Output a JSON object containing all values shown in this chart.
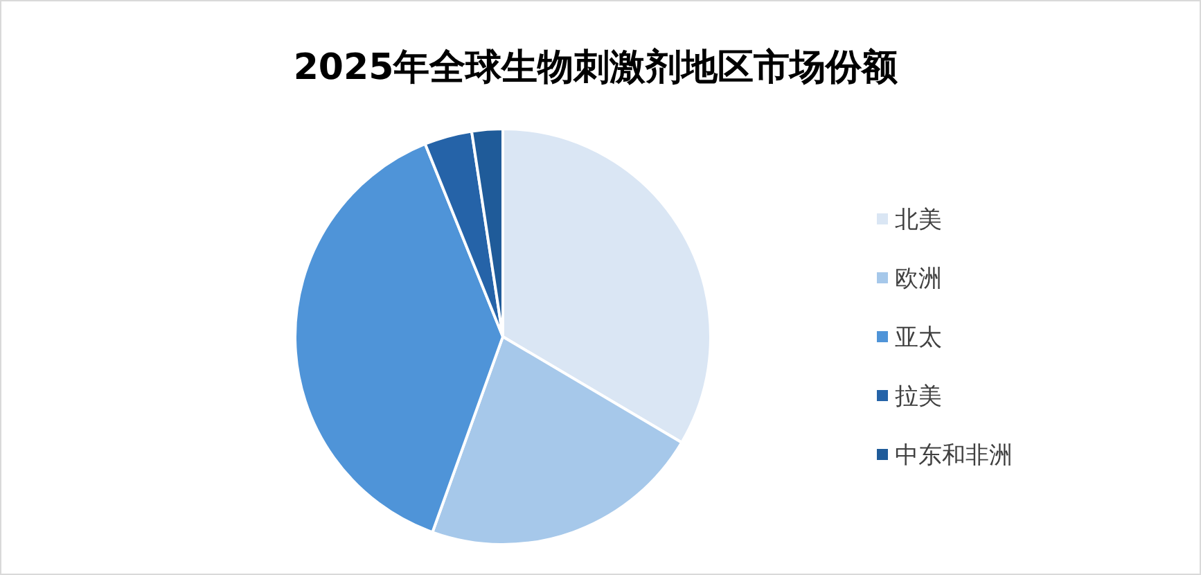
{
  "chart_data": {
    "type": "pie",
    "title": "2025年全球生物刺激剂地区市场份额",
    "categories": [
      "北美",
      "欧洲",
      "亚太",
      "拉美",
      "中东和非洲"
    ],
    "values": [
      33.5,
      22,
      38.4,
      3.7,
      2.4
    ],
    "colors": [
      "#dae6f4",
      "#a6c8ea",
      "#4f94d8",
      "#2563a8",
      "#1f5b99"
    ],
    "legend": "right"
  }
}
